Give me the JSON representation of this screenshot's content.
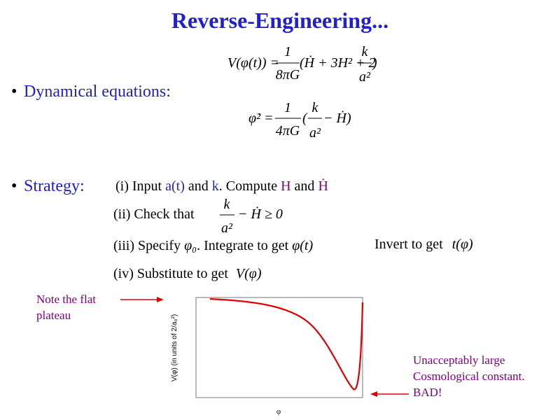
{
  "title": "Reverse-Engineering...",
  "equations": {
    "potential": {
      "lhs": "V(φ(t)) =",
      "frac1_num": "1",
      "frac1_den": "8πG",
      "mid": "(Ḣ + 3H² + 2",
      "frac2_num": "k",
      "frac2_den": "a²",
      "end": ")"
    },
    "kinetic": {
      "lhs": "φ̇² =",
      "frac1_num": "1",
      "frac1_den": "4πG",
      "open": "(",
      "frac2_num": "k",
      "frac2_den": "a²",
      "end": "− Ḣ)"
    }
  },
  "bullets": [
    "Dynamical equations:",
    "Strategy:"
  ],
  "steps": {
    "step1": [
      "(i) Input ",
      "a(t)",
      " and ",
      "k",
      ". Compute ",
      "H",
      " and ",
      "Ḣ"
    ],
    "step2": {
      "text": "(ii) Check that",
      "num": "k",
      "den": "a²",
      "rest": "− Ḣ ≥ 0"
    },
    "step3": [
      "(iii) Specify ",
      "φ₀",
      ". Integrate to get ",
      "φ(t)",
      "Invert to get ",
      "t(φ)"
    ],
    "step4": [
      "(iv) Substitute to get ",
      "V(φ)"
    ]
  },
  "notes": {
    "left": [
      "Note the flat",
      "plateau"
    ],
    "right": [
      "Unacceptably large",
      "Cosmological constant.",
      "BAD!"
    ]
  },
  "plot": {
    "y_label": "V(φ)  (in units of 2/a₀²)",
    "x_label": "φ"
  }
}
